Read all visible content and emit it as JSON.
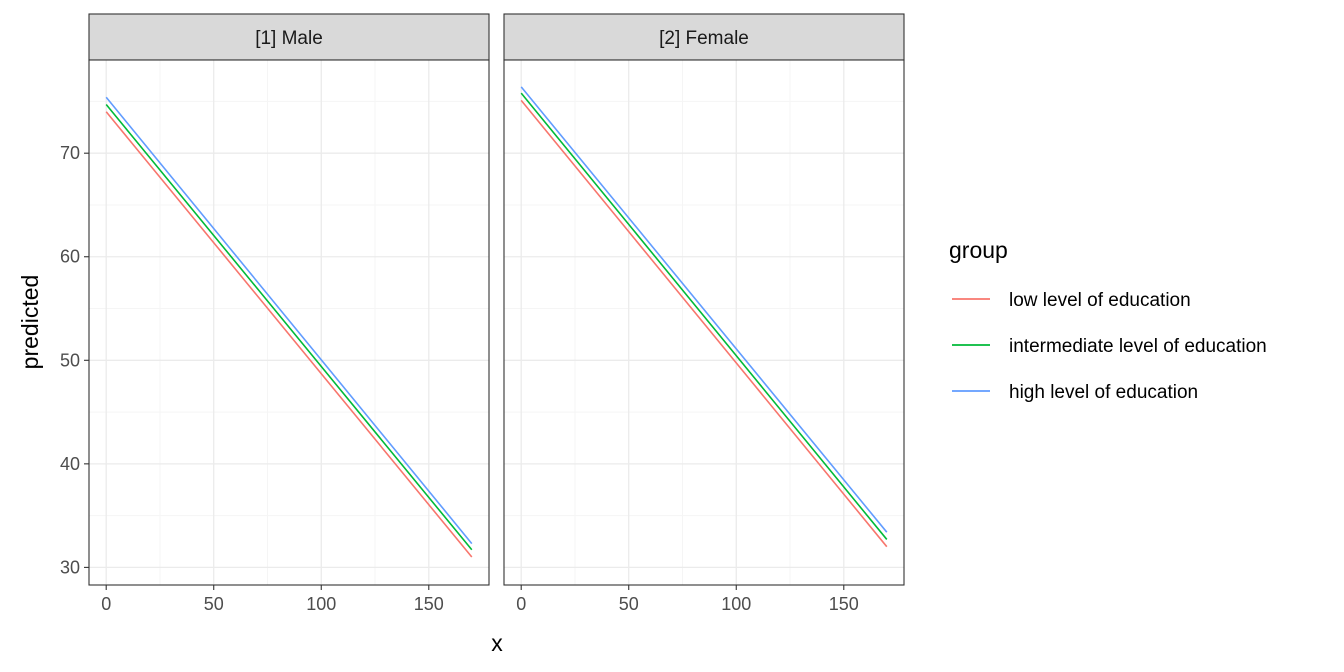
{
  "chart_data": {
    "type": "line",
    "facets": [
      {
        "label": "[1] Male",
        "series": [
          {
            "name": "low level of education",
            "x": [
              0,
              170
            ],
            "y": [
              74.0,
              31.0
            ]
          },
          {
            "name": "intermediate level of education",
            "x": [
              0,
              170
            ],
            "y": [
              74.7,
              31.7
            ]
          },
          {
            "name": "high level of education",
            "x": [
              0,
              170
            ],
            "y": [
              75.4,
              32.3
            ]
          }
        ]
      },
      {
        "label": "[2] Female",
        "series": [
          {
            "name": "low level of education",
            "x": [
              0,
              170
            ],
            "y": [
              75.1,
              32.0
            ]
          },
          {
            "name": "intermediate level of education",
            "x": [
              0,
              170
            ],
            "y": [
              75.8,
              32.7
            ]
          },
          {
            "name": "high level of education",
            "x": [
              0,
              170
            ],
            "y": [
              76.4,
              33.4
            ]
          }
        ]
      }
    ],
    "xlabel": "x",
    "ylabel": "predicted",
    "xlim": [
      -8,
      178
    ],
    "ylim": [
      28.3,
      79.0
    ],
    "x_ticks": [
      0,
      50,
      100,
      150
    ],
    "y_ticks": [
      30,
      40,
      50,
      60,
      70
    ],
    "grid": true,
    "legend": {
      "title": "group",
      "position": "right",
      "entries": [
        "low level of education",
        "intermediate level of education",
        "high level of education"
      ]
    },
    "colors": {
      "low level of education": "#F8766D",
      "intermediate level of education": "#00BA38",
      "high level of education": "#619CFF",
      "strip_fill": "#d9d9d9",
      "panel_border": "#333333",
      "grid_major": "#ebebeb",
      "grid_minor": "#f5f5f5"
    }
  }
}
